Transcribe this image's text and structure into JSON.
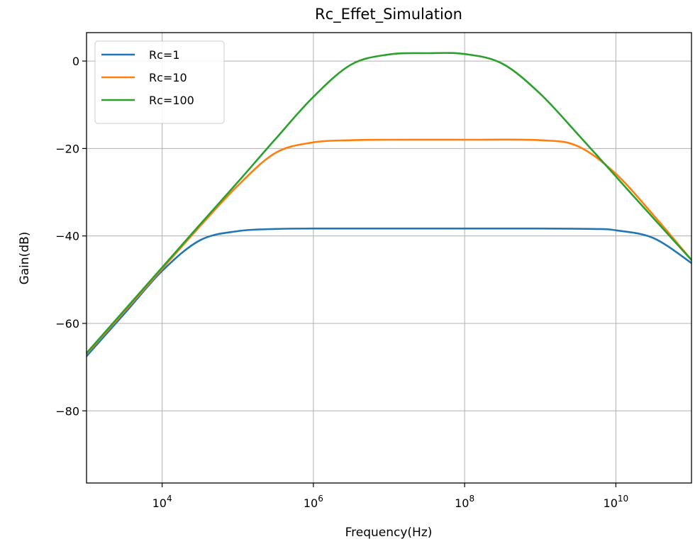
{
  "chart_data": {
    "type": "line",
    "title": "Rc_Effet_Simulation",
    "xlabel": "Frequency(Hz)",
    "ylabel": "Gain(dB)",
    "xscale": "log",
    "xlim": [
      1000,
      100000000000
    ],
    "ylim": [
      -96.5,
      6.5
    ],
    "grid": true,
    "legend_position": "top-left",
    "x_ticks": [
      {
        "value": 10000,
        "base": "10",
        "exp": "4"
      },
      {
        "value": 1000000,
        "base": "10",
        "exp": "6"
      },
      {
        "value": 100000000,
        "base": "10",
        "exp": "8"
      },
      {
        "value": 10000000000,
        "base": "10",
        "exp": "10"
      }
    ],
    "y_ticks": [
      {
        "value": 0,
        "label": "0"
      },
      {
        "value": -20,
        "label": "−20"
      },
      {
        "value": -40,
        "label": "−40"
      },
      {
        "value": -60,
        "label": "−60"
      },
      {
        "value": -80,
        "label": "−80"
      }
    ],
    "series": [
      {
        "name": "Rc=1",
        "color": "#1f77b4",
        "x": [
          1000,
          3162,
          10000,
          31620,
          100000,
          316200,
          1000000,
          10000000,
          100000000,
          1000000000,
          5000000000,
          10000000000,
          31620000000,
          100000000000
        ],
        "y": [
          -67.5,
          -57.8,
          -48.0,
          -41.0,
          -38.9,
          -38.4,
          -38.3,
          -38.3,
          -38.3,
          -38.3,
          -38.4,
          -38.7,
          -40.5,
          -46.2
        ]
      },
      {
        "name": "Rc=10",
        "color": "#ff7f0e",
        "x": [
          1000,
          3162,
          10000,
          31620,
          100000,
          316200,
          1000000,
          3162000,
          10000000,
          100000000,
          1000000000,
          3162000000,
          10000000000,
          31620000000,
          100000000000
        ],
        "y": [
          -67.0,
          -57.3,
          -47.5,
          -37.8,
          -28.5,
          -21.0,
          -18.6,
          -18.1,
          -18.0,
          -18.0,
          -18.1,
          -19.5,
          -25.8,
          -35.3,
          -45.5
        ]
      },
      {
        "name": "Rc=100",
        "color": "#2ca02c",
        "x": [
          1000,
          3162,
          10000,
          31620,
          100000,
          316200,
          1000000,
          3162000,
          10000000,
          31620000,
          100000000,
          316200000,
          1000000000,
          3162000000,
          10000000000,
          31620000000,
          100000000000
        ],
        "y": [
          -66.8,
          -57.0,
          -47.2,
          -37.4,
          -27.7,
          -17.8,
          -8.2,
          -0.8,
          1.5,
          1.8,
          1.6,
          -0.6,
          -7.5,
          -16.8,
          -26.4,
          -36.0,
          -45.5
        ]
      }
    ]
  }
}
